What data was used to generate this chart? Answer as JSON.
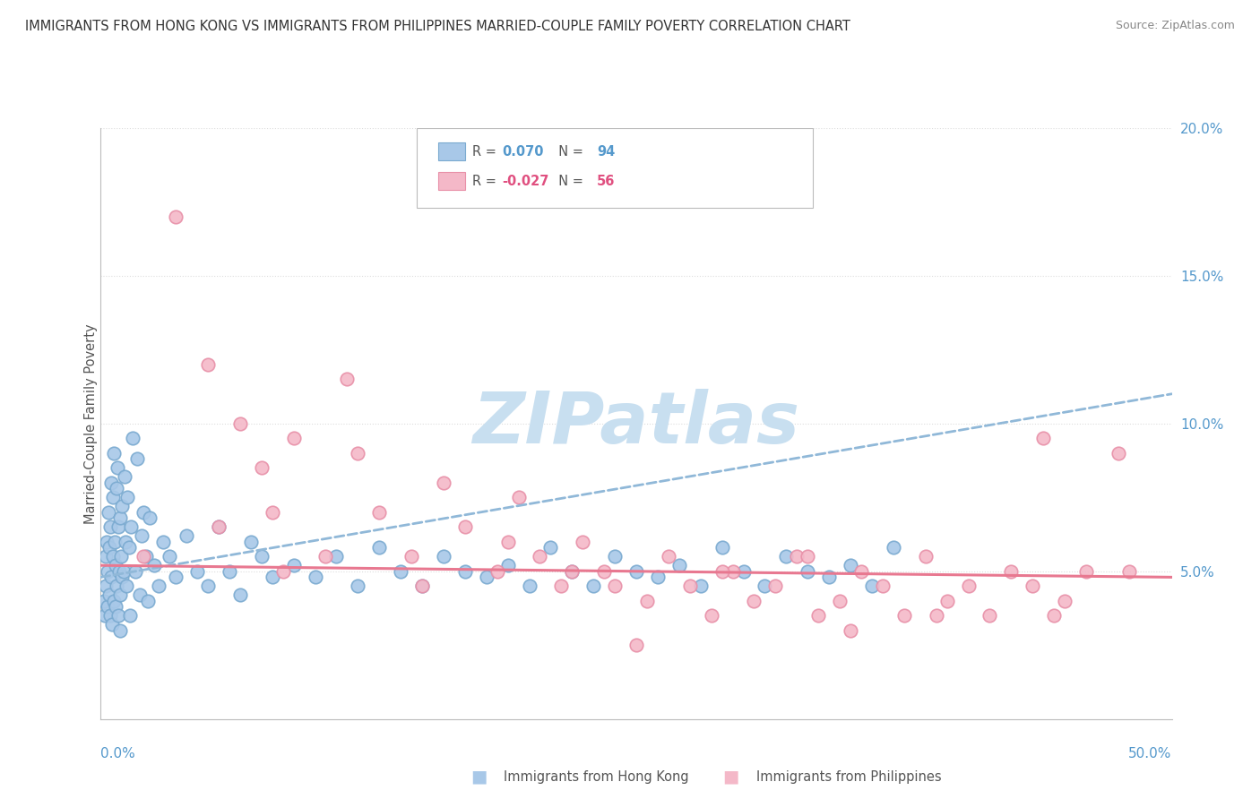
{
  "title": "IMMIGRANTS FROM HONG KONG VS IMMIGRANTS FROM PHILIPPINES MARRIED-COUPLE FAMILY POVERTY CORRELATION CHART",
  "source": "Source: ZipAtlas.com",
  "ylabel": "Married-Couple Family Poverty",
  "legend1_label": "Immigrants from Hong Kong",
  "legend2_label": "Immigrants from Philippines",
  "R_hk": 0.07,
  "N_hk": 94,
  "R_ph": -0.027,
  "N_ph": 56,
  "hk_color": "#a8c8e8",
  "ph_color": "#f4b8c8",
  "hk_edge_color": "#7aaad0",
  "ph_edge_color": "#e890a8",
  "hk_line_color": "#90b8d8",
  "ph_line_color": "#e87890",
  "r_color_hk": "#5599cc",
  "r_color_ph": "#e05080",
  "watermark_color": "#c8dff0",
  "background_color": "#ffffff",
  "grid_color": "#dddddd",
  "hk_x": [
    0.15,
    0.18,
    0.22,
    0.25,
    0.28,
    0.3,
    0.32,
    0.35,
    0.38,
    0.4,
    0.42,
    0.45,
    0.48,
    0.5,
    0.52,
    0.55,
    0.58,
    0.6,
    0.62,
    0.65,
    0.68,
    0.7,
    0.72,
    0.75,
    0.78,
    0.8,
    0.82,
    0.85,
    0.88,
    0.9,
    0.92,
    0.95,
    0.98,
    1.0,
    1.05,
    1.1,
    1.15,
    1.2,
    1.25,
    1.3,
    1.35,
    1.4,
    1.5,
    1.6,
    1.7,
    1.8,
    1.9,
    2.0,
    2.1,
    2.2,
    2.3,
    2.5,
    2.7,
    2.9,
    3.2,
    3.5,
    4.0,
    4.5,
    5.0,
    5.5,
    6.0,
    6.5,
    7.0,
    7.5,
    8.0,
    9.0,
    10.0,
    11.0,
    12.0,
    13.0,
    14.0,
    15.0,
    16.0,
    17.0,
    18.0,
    19.0,
    20.0,
    21.0,
    22.0,
    23.0,
    24.0,
    25.0,
    26.0,
    27.0,
    28.0,
    29.0,
    30.0,
    31.0,
    32.0,
    33.0,
    34.0,
    35.0,
    36.0,
    37.0
  ],
  "hk_y": [
    4.0,
    3.5,
    5.5,
    4.5,
    6.0,
    3.8,
    5.0,
    7.0,
    4.2,
    5.8,
    3.5,
    6.5,
    4.8,
    8.0,
    3.2,
    5.5,
    7.5,
    4.0,
    9.0,
    6.0,
    3.8,
    5.2,
    7.8,
    4.5,
    8.5,
    6.5,
    3.5,
    5.0,
    4.2,
    6.8,
    3.0,
    5.5,
    4.8,
    7.2,
    5.0,
    8.2,
    6.0,
    4.5,
    7.5,
    5.8,
    3.5,
    6.5,
    9.5,
    5.0,
    8.8,
    4.2,
    6.2,
    7.0,
    5.5,
    4.0,
    6.8,
    5.2,
    4.5,
    6.0,
    5.5,
    4.8,
    6.2,
    5.0,
    4.5,
    6.5,
    5.0,
    4.2,
    6.0,
    5.5,
    4.8,
    5.2,
    4.8,
    5.5,
    4.5,
    5.8,
    5.0,
    4.5,
    5.5,
    5.0,
    4.8,
    5.2,
    4.5,
    5.8,
    5.0,
    4.5,
    5.5,
    5.0,
    4.8,
    5.2,
    4.5,
    5.8,
    5.0,
    4.5,
    5.5,
    5.0,
    4.8,
    5.2,
    4.5,
    5.8
  ],
  "ph_x": [
    3.5,
    5.0,
    5.5,
    6.5,
    7.5,
    8.5,
    9.0,
    10.5,
    11.5,
    13.0,
    14.5,
    16.0,
    17.0,
    18.5,
    19.5,
    20.5,
    21.5,
    22.5,
    23.5,
    24.0,
    25.5,
    26.5,
    27.5,
    28.5,
    29.5,
    30.5,
    31.5,
    32.5,
    33.5,
    34.5,
    35.5,
    36.5,
    37.5,
    38.5,
    39.5,
    40.5,
    41.5,
    42.5,
    43.5,
    44.5,
    45.0,
    46.0,
    47.5,
    2.0,
    12.0,
    22.0,
    33.0,
    44.0,
    8.0,
    19.0,
    29.0,
    39.0,
    15.0,
    25.0,
    35.0,
    48.0
  ],
  "ph_y": [
    17.0,
    12.0,
    6.5,
    10.0,
    8.5,
    5.0,
    9.5,
    5.5,
    11.5,
    7.0,
    5.5,
    8.0,
    6.5,
    5.0,
    7.5,
    5.5,
    4.5,
    6.0,
    5.0,
    4.5,
    4.0,
    5.5,
    4.5,
    3.5,
    5.0,
    4.0,
    4.5,
    5.5,
    3.5,
    4.0,
    5.0,
    4.5,
    3.5,
    5.5,
    4.0,
    4.5,
    3.5,
    5.0,
    4.5,
    3.5,
    4.0,
    5.0,
    9.0,
    5.5,
    9.0,
    5.0,
    5.5,
    9.5,
    7.0,
    6.0,
    5.0,
    3.5,
    4.5,
    2.5,
    3.0,
    5.0
  ],
  "hk_trend_start_y": 4.8,
  "hk_trend_end_y": 11.0,
  "ph_trend_start_y": 5.2,
  "ph_trend_end_y": 4.8,
  "xmin": 0,
  "xmax": 50,
  "ymin": 0,
  "ymax": 20
}
